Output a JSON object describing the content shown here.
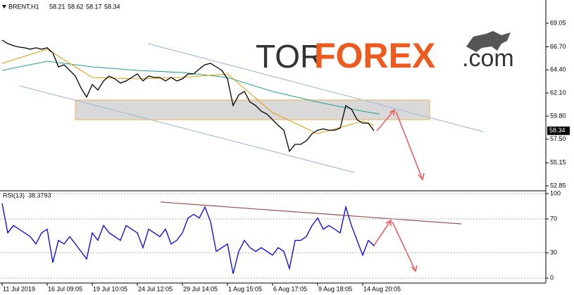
{
  "chart_data": [
    {
      "type": "line",
      "title": "BRENT,H1",
      "ohlc": [
        58.21,
        58.62,
        58.17,
        58.34
      ],
      "last_price": 58.34,
      "watermark": [
        "TOR",
        "FOREX",
        ".com"
      ],
      "xlim": [
        -0.375,
        96.5
      ],
      "ylim": [
        52.43,
        71.29
      ],
      "yticks": [
        69.05,
        {
          "value": 66.7,
          "label": "66.70"
        },
        {
          "value": 64.4,
          "label": "64.40"
        },
        {
          "value": 62.1,
          "label": "62.10"
        },
        {
          "value": 59.8,
          "label": "59.80"
        },
        {
          "value": 57.5,
          "label": "57.50"
        },
        55.15,
        52.85
      ],
      "x": [
        0,
        1,
        2,
        3,
        4,
        5,
        6,
        7,
        8,
        9,
        10,
        11,
        12,
        13,
        14,
        15,
        16,
        17,
        18,
        19,
        20,
        21,
        22,
        23,
        24,
        25,
        26,
        27,
        28,
        29,
        30,
        31,
        32,
        33,
        34,
        35,
        36,
        37,
        38,
        39,
        40,
        41,
        42,
        43,
        44,
        45,
        46,
        47,
        48,
        49,
        50,
        51,
        52,
        53,
        54,
        55,
        56,
        57,
        58,
        59,
        60,
        61,
        62,
        63,
        64,
        65,
        66
      ],
      "series": [
        {
          "color": "#000000",
          "values": [
            67.37,
            67.02,
            66.81,
            66.67,
            66.6,
            66.46,
            66.6,
            66.46,
            66.6,
            66.1,
            64.7,
            64.91,
            64.35,
            63.79,
            62.6,
            61.69,
            62.95,
            62.39,
            63.3,
            63.79,
            63.51,
            63.09,
            63.3,
            63.65,
            64.0,
            63.3,
            63.79,
            63.65,
            63.65,
            63.3,
            63.65,
            63.3,
            63.51,
            64.0,
            64.0,
            64.49,
            64.91,
            65.05,
            64.7,
            64.35,
            63.51,
            60.85,
            61.9,
            62.25,
            61.2,
            60.85,
            60.28,
            60.0,
            59.44,
            58.88,
            58.39,
            56.29,
            56.99,
            56.99,
            57.34,
            58.04,
            58.39,
            58.53,
            58.39,
            58.39,
            58.6,
            60.85,
            60.5,
            59.44,
            59.09,
            59.09,
            58.34
          ]
        },
        {
          "color": "#e69b00",
          "x": [
            0,
            8,
            16,
            24,
            32,
            40,
            48,
            56,
            64,
            66
          ],
          "values": [
            65.05,
            66.46,
            63.65,
            63.51,
            63.65,
            64.0,
            60.14,
            58.04,
            59.3,
            58.88
          ]
        },
        {
          "color": "#20a090",
          "x": [
            0,
            8,
            16,
            24,
            32,
            40,
            48,
            56,
            64,
            67
          ],
          "values": [
            64.35,
            65.26,
            64.7,
            64.35,
            64.14,
            63.65,
            62.25,
            61.2,
            60.28,
            60.0
          ]
        }
      ]
    },
    {
      "type": "line",
      "title": "RSI(13)",
      "xlim": [
        -0.375,
        96.5
      ],
      "ylim": [
        -5.8,
        102.5
      ],
      "yticks": [
        100,
        70,
        30,
        0
      ],
      "xticks": [
        {
          "value": 0,
          "label": "11 Jul 2019"
        },
        {
          "value": 8,
          "label": "16 Jul 09:05"
        },
        {
          "value": 16,
          "label": "19 Jul 10:05"
        },
        {
          "value": 24,
          "label": "24 Jul 12:05"
        },
        {
          "value": 32,
          "label": "29 Jul 14:05"
        },
        {
          "value": 40,
          "label": "1 Aug 15:05"
        },
        {
          "value": 48,
          "label": "6 Aug 17:05"
        },
        {
          "value": 56,
          "label": "9 Aug 18:05"
        },
        {
          "value": 64,
          "label": "14 Aug 20:05"
        }
      ],
      "x": [
        0,
        1,
        2,
        3,
        4,
        5,
        6,
        7,
        8,
        9,
        10,
        11,
        12,
        13,
        14,
        15,
        16,
        17,
        18,
        19,
        20,
        21,
        22,
        23,
        24,
        25,
        26,
        27,
        28,
        29,
        30,
        31,
        32,
        33,
        34,
        35,
        36,
        37,
        38,
        39,
        40,
        41,
        42,
        43,
        44,
        45,
        46,
        47,
        48,
        49,
        50,
        51,
        52,
        53,
        54,
        55,
        56,
        57,
        58,
        59,
        60,
        61,
        62,
        63,
        64,
        65,
        66
      ],
      "series": [
        {
          "color": "#0000ff",
          "values": [
            88.6,
            53.5,
            62.3,
            57.9,
            53.5,
            49.1,
            40.4,
            53.5,
            57.9,
            18.4,
            44.7,
            40.4,
            49.1,
            40.4,
            31.6,
            22.8,
            53.5,
            44.7,
            62.3,
            53.5,
            49.1,
            44.7,
            62.3,
            57.9,
            53.5,
            36.0,
            57.9,
            53.5,
            49.1,
            57.9,
            40.4,
            44.7,
            53.5,
            71.1,
            75.4,
            71.1,
            84.2,
            66.7,
            31.6,
            36.0,
            40.4,
            5.3,
            31.6,
            44.7,
            36.0,
            31.6,
            36.0,
            31.6,
            27.2,
            36.0,
            31.6,
            11.4,
            44.7,
            44.7,
            49.1,
            62.3,
            71.1,
            57.9,
            62.3,
            57.9,
            53.5,
            84.2,
            62.3,
            44.7,
            27.2,
            44.7,
            38.3793
          ]
        }
      ]
    }
  ]
}
